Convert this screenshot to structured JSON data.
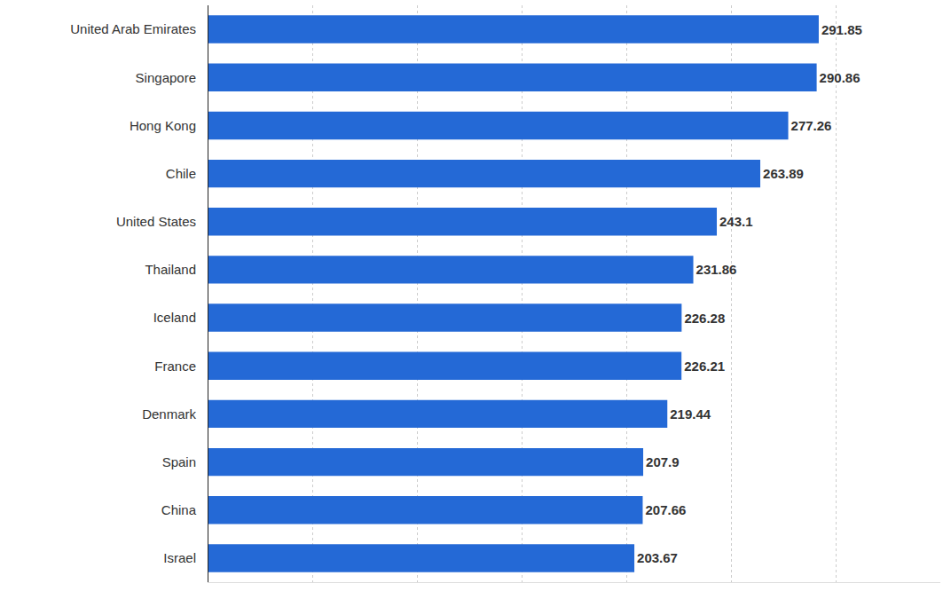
{
  "chart_data": {
    "type": "bar",
    "orientation": "horizontal",
    "categories": [
      "United Arab Emirates",
      "Singapore",
      "Hong Kong",
      "Chile",
      "United States",
      "Thailand",
      "Iceland",
      "France",
      "Denmark",
      "Spain",
      "China",
      "Israel"
    ],
    "values": [
      291.85,
      290.86,
      277.26,
      263.89,
      243.1,
      231.86,
      226.28,
      226.21,
      219.44,
      207.9,
      207.66,
      203.67
    ],
    "color": "#2469d6",
    "xlim": [
      0,
      350
    ],
    "xticks": [
      0,
      50,
      100,
      150,
      200,
      250,
      300
    ],
    "grid": true,
    "data_labels": true,
    "tick_labels": "y"
  }
}
